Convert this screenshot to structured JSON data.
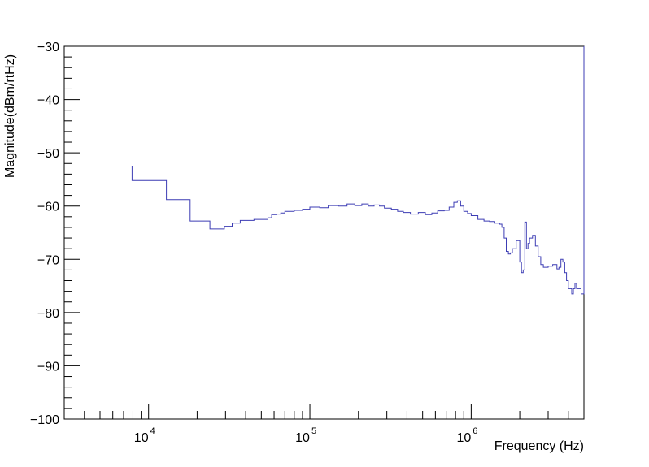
{
  "chart_data": {
    "type": "line",
    "title": "",
    "xlabel": "Frequency (Hz)",
    "ylabel": "Magnitude(dBm/rtHz)",
    "x_scale": "log",
    "xlim": [
      3000,
      5000000
    ],
    "ylim": [
      -100,
      -30
    ],
    "x_tick_labels": [
      {
        "mantissa": "10",
        "exponent": "4",
        "value": 10000
      },
      {
        "mantissa": "10",
        "exponent": "5",
        "value": 100000
      },
      {
        "mantissa": "10",
        "exponent": "6",
        "value": 1000000
      }
    ],
    "y_tick_labels": [
      {
        "text": "−30",
        "value": -30
      },
      {
        "text": "−40",
        "value": -40
      },
      {
        "text": "−50",
        "value": -50
      },
      {
        "text": "−60",
        "value": -60
      },
      {
        "text": "−70",
        "value": -70
      },
      {
        "text": "−80",
        "value": -80
      },
      {
        "text": "−90",
        "value": -90
      },
      {
        "text": "−100",
        "value": -100
      }
    ],
    "grid": false,
    "legend": "none",
    "line_color": "#3c3cb4",
    "series": [
      {
        "step": true,
        "x": [
          3000,
          7900,
          12900,
          18100,
          24000,
          29500,
          33000,
          37000,
          45000,
          55000,
          58000,
          62000,
          66000,
          70000,
          75000,
          80000,
          90000,
          100000,
          115000,
          130000,
          150000,
          170000,
          190000,
          210000,
          230000,
          250000,
          270000,
          290000,
          320000,
          350000,
          380000,
          420000,
          470000,
          520000,
          570000,
          620000,
          680000,
          730000,
          780000,
          820000,
          860000,
          900000,
          950000,
          1000000,
          1100000,
          1200000,
          1300000,
          1400000,
          1500000,
          1550000,
          1600000,
          1650000,
          1700000,
          1750000,
          1800000,
          1900000,
          2000000,
          2050000,
          2100000,
          2150000,
          2200000,
          2250000,
          2300000,
          2400000,
          2500000,
          2600000,
          2700000,
          2800000,
          2900000,
          3000000,
          3200000,
          3400000,
          3500000,
          3600000,
          3700000,
          3800000,
          3900000,
          4000000,
          4200000,
          4300000,
          4400000,
          4500000,
          4600000,
          4800000
        ],
        "y": [
          -52.5,
          -55.2,
          -58.8,
          -62.8,
          -64.3,
          -63.8,
          -63.2,
          -62.7,
          -62.5,
          -62.2,
          -61.6,
          -61.5,
          -61.3,
          -61.0,
          -61.0,
          -60.8,
          -60.6,
          -60.2,
          -60.3,
          -59.9,
          -60.0,
          -59.6,
          -59.9,
          -59.6,
          -60.0,
          -59.8,
          -60.0,
          -60.4,
          -60.6,
          -61.0,
          -61.2,
          -61.5,
          -61.2,
          -61.6,
          -61.3,
          -60.9,
          -60.8,
          -60.2,
          -59.3,
          -59.0,
          -60.0,
          -61.0,
          -61.4,
          -61.8,
          -62.5,
          -62.8,
          -62.9,
          -63.2,
          -63.4,
          -64.0,
          -66.0,
          -68.5,
          -69.0,
          -68.8,
          -68.0,
          -66.5,
          -70.5,
          -72.5,
          -72.0,
          -63.0,
          -68.0,
          -67.0,
          -66.0,
          -65.5,
          -67.5,
          -69.5,
          -71.0,
          -71.5,
          -71.5,
          -71.3,
          -71.0,
          -71.8,
          -71.5,
          -70.0,
          -70.5,
          -72.5,
          -74.0,
          -75.5,
          -76.5,
          -75.5,
          -74.5,
          -75.5,
          -75.5,
          -76.5
        ]
      }
    ]
  }
}
